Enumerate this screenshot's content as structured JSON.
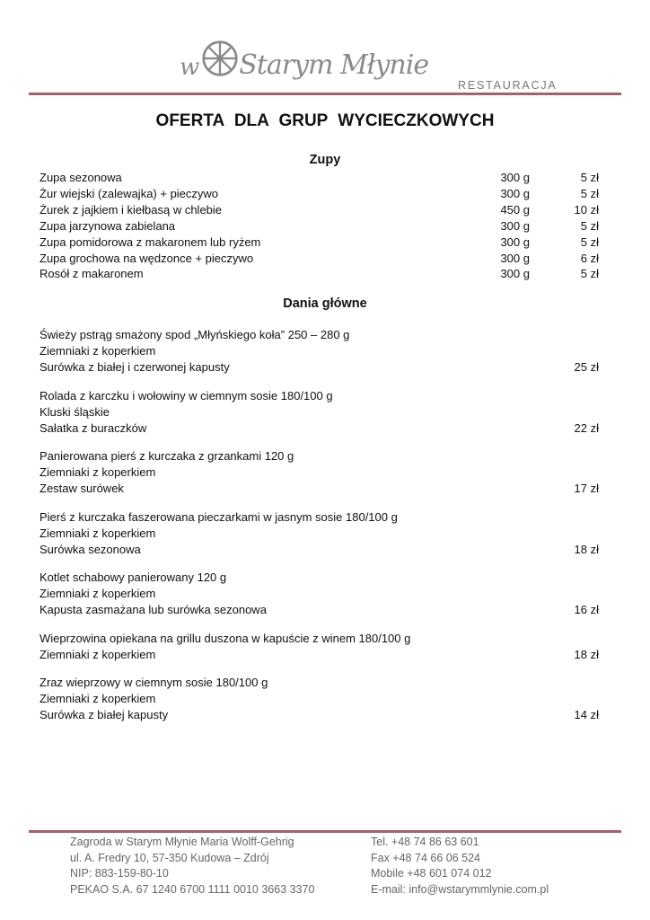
{
  "header": {
    "logo_text_w": "w",
    "logo_text_name": "Starym Młynie",
    "subtitle": "RESTAURACJA"
  },
  "title": "OFERTA  DLA  GRUP  WYCIECZKOWYCH",
  "soups": {
    "heading": "Zupy",
    "items": [
      {
        "name": "Zupa sezonowa",
        "weight": "300 g",
        "price": "5 zł"
      },
      {
        "name": "Żur wiejski (zalewajka) + pieczywo",
        "weight": "300 g",
        "price": "5 zł"
      },
      {
        "name": "Żurek z jajkiem i kiełbasą w chlebie",
        "weight": "450 g",
        "price": "10 zł"
      },
      {
        "name": "Zupa jarzynowa zabielana",
        "weight": "300 g",
        "price": "5 zł"
      },
      {
        "name": "Zupa pomidorowa z makaronem lub ryżem",
        "weight": "300 g",
        "price": "5 zł"
      },
      {
        "name": "Zupa grochowa na wędzonce + pieczywo",
        "weight": "300 g",
        "price": "6 zł"
      },
      {
        "name": "Rosół z makaronem",
        "weight": "300 g",
        "price": "5 zł"
      }
    ]
  },
  "mains": {
    "heading": "Dania główne",
    "items": [
      {
        "lines": [
          "Świeży pstrąg smażony spod „Młyńskiego koła” 250 – 280 g",
          "Ziemniaki z koperkiem",
          "Surówka z białej i czerwonej kapusty"
        ],
        "price": "25 zł"
      },
      {
        "lines": [
          "Rolada z karczku i wołowiny w ciemnym  sosie 180/100 g",
          "Kluski śląskie",
          "Sałatka z buraczków"
        ],
        "price": "22 zł"
      },
      {
        "lines": [
          "Panierowana pierś z kurczaka z grzankami 120 g",
          "Ziemniaki z koperkiem",
          "Zestaw surówek"
        ],
        "price": "17 zł"
      },
      {
        "lines": [
          "Pierś z kurczaka faszerowana pieczarkami w jasnym sosie 180/100 g",
          "Ziemniaki z koperkiem",
          "Surówka sezonowa"
        ],
        "price": "18 zł"
      },
      {
        "lines": [
          "Kotlet schabowy panierowany 120 g",
          "Ziemniaki z koperkiem",
          "Kapusta zasmażana lub surówka sezonowa"
        ],
        "price": "16 zł"
      },
      {
        "lines": [
          "Wieprzowina opiekana na grillu duszona w kapuście z winem 180/100 g",
          "Ziemniaki z koperkiem"
        ],
        "price": "18 zł"
      },
      {
        "lines": [
          "Zraz wieprzowy w ciemnym sosie 180/100 g",
          "Ziemniaki z koperkiem",
          "Surówka z białej kapusty"
        ],
        "price": "14 zł"
      }
    ]
  },
  "footer": {
    "left": [
      "Zagroda w Starym Młynie Maria Wolff-Gehrig",
      "ul. A. Fredry 10, 57-350 Kudowa – Zdrój",
      "NIP: 883-159-80-10",
      "PEKAO S.A. 67 1240 6700 1111 0010 3663 3370"
    ],
    "right": [
      "Tel. +48 74 86 63 601",
      "Fax +48 74 66 06 524",
      "Mobile +48 601 074 012",
      "E-mail: info@wstarymmlynie.com.pl"
    ]
  },
  "colors": {
    "rule": "#a6606d",
    "logo": "#8a8a8a"
  }
}
